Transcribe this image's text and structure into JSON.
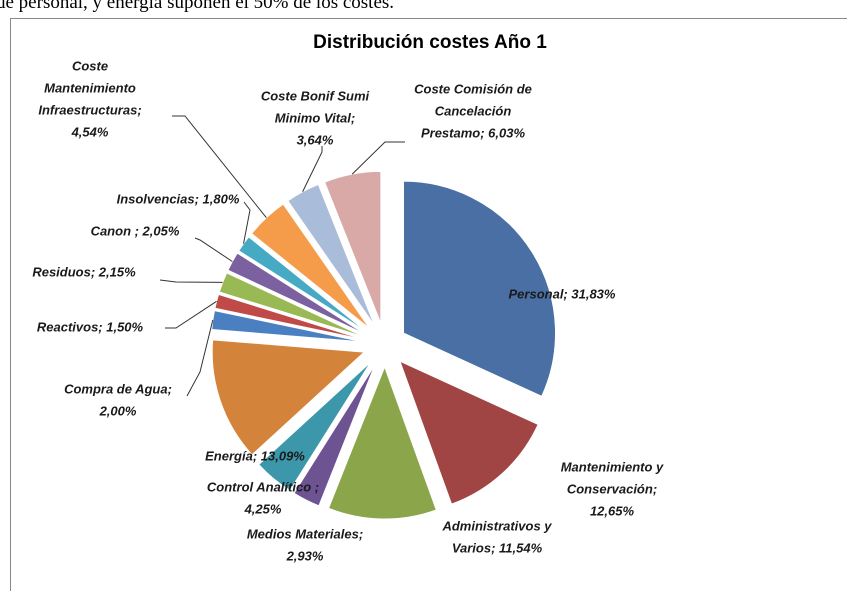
{
  "caption": "de personal, y energía suponen el 50% de los costes.",
  "chart_data": {
    "type": "pie",
    "title": "Distribución costes Año 1",
    "values": [
      31.83,
      12.65,
      11.54,
      2.93,
      4.25,
      13.09,
      2.0,
      1.5,
      2.15,
      2.05,
      1.8,
      4.54,
      3.64,
      6.03
    ],
    "value_labels": [
      [
        "Personal; 31,83%"
      ],
      [
        "Mantenimiento y",
        "Conservación;",
        "12,65%"
      ],
      [
        "Administrativos y",
        "Varios; 11,54%"
      ],
      [
        "Medios Materiales;",
        "2,93%"
      ],
      [
        "Control Analítico ;",
        "4,25%"
      ],
      [
        "Energía; 13,09%"
      ],
      [
        "Compra de Agua;",
        "2,00%"
      ],
      [
        "Reactivos; 1,50%"
      ],
      [
        "Residuos; 2,15%"
      ],
      [
        "Canon ; 2,05%"
      ],
      [
        "Insolvencias; 1,80%"
      ],
      [
        "Coste",
        "Mantenimiento",
        "Infraestructuras;",
        "4,54%"
      ],
      [
        "Coste Bonif Sumi",
        "Minimo Vital;",
        "3,64%"
      ],
      [
        "Coste Comisión de",
        "Cancelación",
        "Prestamo; 6,03%"
      ]
    ],
    "colors": [
      "#4a6fa5",
      "#a04543",
      "#8aa54a",
      "#6e5393",
      "#3d97ab",
      "#d3843a",
      "#4a7fc1",
      "#c04a47",
      "#98b954",
      "#7c61a0",
      "#46aac5",
      "#f59c4b",
      "#a9bcd9",
      "#d9a9a8"
    ]
  }
}
